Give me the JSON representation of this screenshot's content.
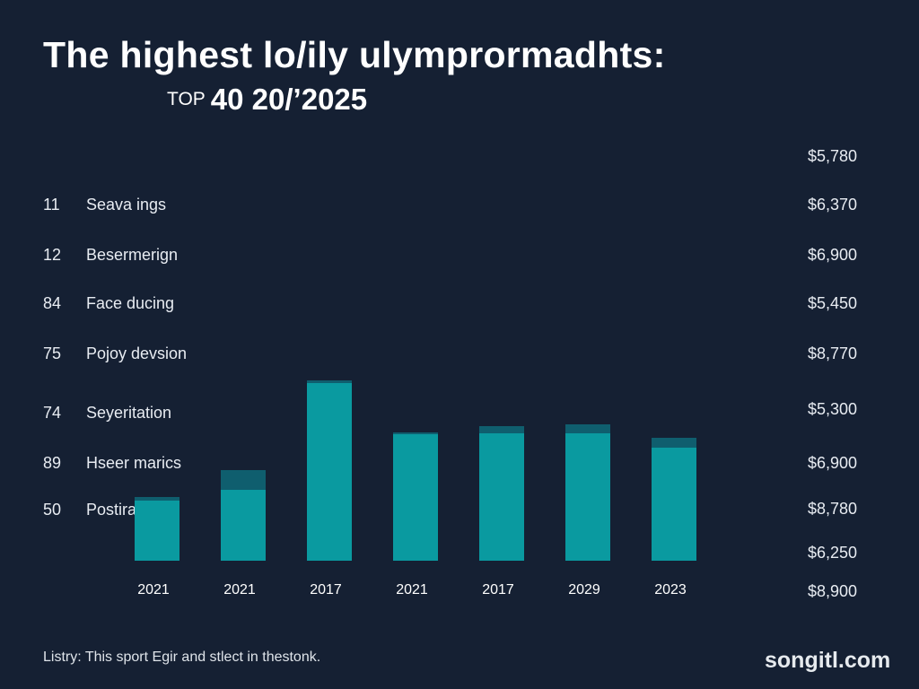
{
  "title": "The highest lo/ily ulymprormadhts:",
  "subtitle": {
    "prefix": "TOP",
    "main": "40 20/’2025"
  },
  "rows": [
    {
      "rank": "11",
      "label": "Seava ings",
      "value": "$6,370"
    },
    {
      "rank": "12",
      "label": "Besermerign",
      "value": "$6,900"
    },
    {
      "rank": "84",
      "label": "Face ducing",
      "value": "$5,450"
    },
    {
      "rank": "75",
      "label": "Pojoy devsion",
      "value": "$8,770"
    },
    {
      "rank": "74",
      "label": "Seyeritation",
      "value": "$5,300"
    },
    {
      "rank": "89",
      "label": "Hseer marics",
      "value": "$6,900"
    },
    {
      "rank": "50",
      "label": "Postira",
      "value": "$8,780"
    }
  ],
  "extra_values": {
    "top": "$5,780",
    "lower": "$6,250",
    "bottom": "$8,900"
  },
  "chart_data": {
    "type": "bar",
    "categories": [
      "2021",
      "2021",
      "2017",
      "2021",
      "2017",
      "2029",
      "2023"
    ],
    "series": [
      {
        "values": [
          71,
          101,
          201,
          143,
          150,
          152,
          137
        ]
      }
    ],
    "caps": [
      4,
      22,
      3,
      2,
      8,
      10,
      11
    ],
    "ylim": [
      0,
      210
    ],
    "grid": false,
    "colors": {
      "bar": "#0a9aa0",
      "cap": "#0f5e6e"
    }
  },
  "footnote": "Listry: This sport Egir and stlect in thestonk.",
  "brand": "songitl.com",
  "colors": {
    "background": "#152033",
    "text": "#ffffff"
  }
}
